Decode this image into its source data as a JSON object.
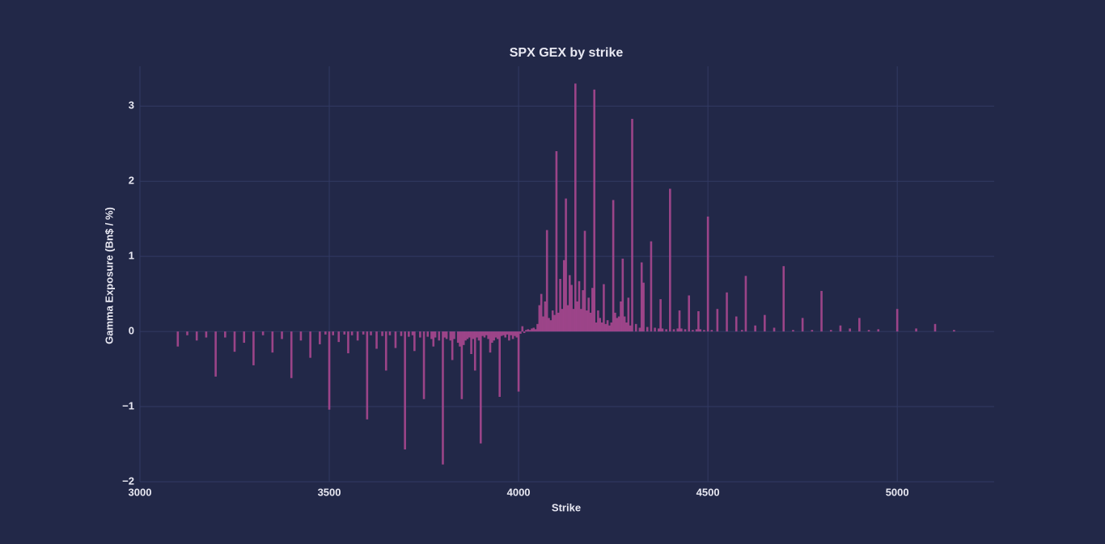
{
  "chart_data": {
    "type": "bar",
    "title": "SPX GEX by strike",
    "x_label": "Strike",
    "y_label": "Gamma Exposure (Bn$ / %)",
    "color": "#a8478f",
    "grid": true,
    "xlim": [
      3000,
      5256
    ],
    "ylim": [
      -2,
      3.53
    ],
    "xticks": [
      3000,
      3500,
      4000,
      4500,
      5000
    ],
    "yticks": [
      {
        "value": -2,
        "label": "−2"
      },
      {
        "value": -1,
        "label": "−1"
      },
      0,
      1,
      2,
      3
    ],
    "x": [
      3100,
      3125,
      3150,
      3175,
      3200,
      3225,
      3250,
      3275,
      3300,
      3325,
      3350,
      3375,
      3400,
      3425,
      3450,
      3475,
      3490,
      3500,
      3510,
      3525,
      3540,
      3550,
      3560,
      3575,
      3590,
      3600,
      3610,
      3625,
      3640,
      3650,
      3660,
      3675,
      3690,
      3700,
      3710,
      3720,
      3725,
      3740,
      3750,
      3760,
      3770,
      3775,
      3780,
      3790,
      3800,
      3805,
      3810,
      3820,
      3825,
      3830,
      3840,
      3845,
      3850,
      3855,
      3860,
      3865,
      3870,
      3875,
      3880,
      3885,
      3890,
      3895,
      3900,
      3905,
      3910,
      3915,
      3920,
      3925,
      3930,
      3935,
      3940,
      3945,
      3950,
      3955,
      3960,
      3965,
      3970,
      3975,
      3980,
      3985,
      3990,
      3995,
      4000,
      4005,
      4010,
      4015,
      4020,
      4025,
      4030,
      4035,
      4040,
      4045,
      4050,
      4055,
      4060,
      4065,
      4070,
      4075,
      4080,
      4085,
      4090,
      4095,
      4100,
      4105,
      4110,
      4115,
      4120,
      4125,
      4130,
      4135,
      4140,
      4145,
      4150,
      4155,
      4160,
      4165,
      4170,
      4175,
      4180,
      4185,
      4190,
      4195,
      4200,
      4205,
      4210,
      4215,
      4220,
      4225,
      4230,
      4235,
      4240,
      4245,
      4250,
      4255,
      4260,
      4265,
      4270,
      4275,
      4280,
      4285,
      4290,
      4295,
      4300,
      4310,
      4320,
      4325,
      4330,
      4340,
      4350,
      4360,
      4370,
      4375,
      4380,
      4390,
      4400,
      4410,
      4420,
      4425,
      4430,
      4440,
      4450,
      4460,
      4470,
      4475,
      4480,
      4490,
      4500,
      4510,
      4525,
      4550,
      4575,
      4590,
      4600,
      4625,
      4650,
      4675,
      4700,
      4725,
      4750,
      4775,
      4800,
      4825,
      4850,
      4875,
      4900,
      4925,
      4950,
      5000,
      5050,
      5100,
      5150
    ],
    "values": [
      -0.2,
      -0.05,
      -0.12,
      -0.08,
      -0.6,
      -0.08,
      -0.27,
      -0.15,
      -0.45,
      -0.05,
      -0.28,
      -0.1,
      -0.62,
      -0.12,
      -0.35,
      -0.17,
      -0.04,
      -1.04,
      -0.05,
      -0.14,
      -0.04,
      -0.29,
      -0.05,
      -0.12,
      -0.04,
      -1.17,
      -0.05,
      -0.23,
      -0.06,
      -0.52,
      -0.05,
      -0.22,
      -0.06,
      -1.57,
      -0.07,
      -0.05,
      -0.26,
      -0.08,
      -0.9,
      -0.07,
      -0.1,
      -0.2,
      -0.08,
      -0.12,
      -1.77,
      -0.08,
      -0.1,
      -0.12,
      -0.38,
      -0.1,
      -0.15,
      -0.2,
      -0.9,
      -0.18,
      -0.12,
      -0.1,
      -0.08,
      -0.3,
      -0.1,
      -0.52,
      -0.08,
      -0.12,
      -1.49,
      -0.06,
      -0.08,
      -0.05,
      -0.1,
      -0.28,
      -0.15,
      -0.12,
      -0.08,
      -0.1,
      -0.87,
      -0.06,
      -0.05,
      -0.08,
      -0.04,
      -0.12,
      -0.05,
      -0.1,
      -0.06,
      -0.08,
      -0.8,
      -0.03,
      0.07,
      -0.02,
      0.02,
      0.03,
      0.02,
      0.04,
      0.05,
      0.03,
      0.1,
      0.35,
      0.5,
      0.2,
      0.4,
      1.35,
      0.18,
      0.15,
      0.28,
      0.22,
      2.4,
      0.25,
      0.7,
      0.3,
      0.95,
      1.77,
      0.35,
      0.75,
      0.62,
      0.3,
      3.3,
      0.4,
      0.67,
      0.3,
      0.55,
      1.34,
      0.28,
      0.45,
      0.25,
      0.58,
      3.22,
      0.12,
      0.28,
      0.18,
      0.12,
      0.63,
      0.1,
      0.15,
      0.08,
      0.12,
      1.75,
      0.25,
      0.18,
      0.2,
      0.4,
      0.97,
      0.2,
      0.12,
      0.45,
      0.08,
      2.83,
      0.1,
      0.05,
      0.92,
      0.65,
      0.06,
      1.2,
      0.05,
      0.04,
      0.43,
      0.04,
      0.03,
      1.9,
      0.03,
      0.04,
      0.28,
      0.04,
      0.03,
      0.48,
      0.02,
      0.03,
      0.27,
      0.03,
      0.02,
      1.53,
      0.02,
      0.3,
      0.52,
      0.2,
      0.02,
      0.74,
      0.08,
      0.22,
      0.05,
      0.87,
      0.02,
      0.18,
      0.02,
      0.54,
      0.02,
      0.08,
      0.04,
      0.18,
      0.02,
      0.03,
      0.3,
      0.04,
      0.1,
      0.02
    ]
  }
}
